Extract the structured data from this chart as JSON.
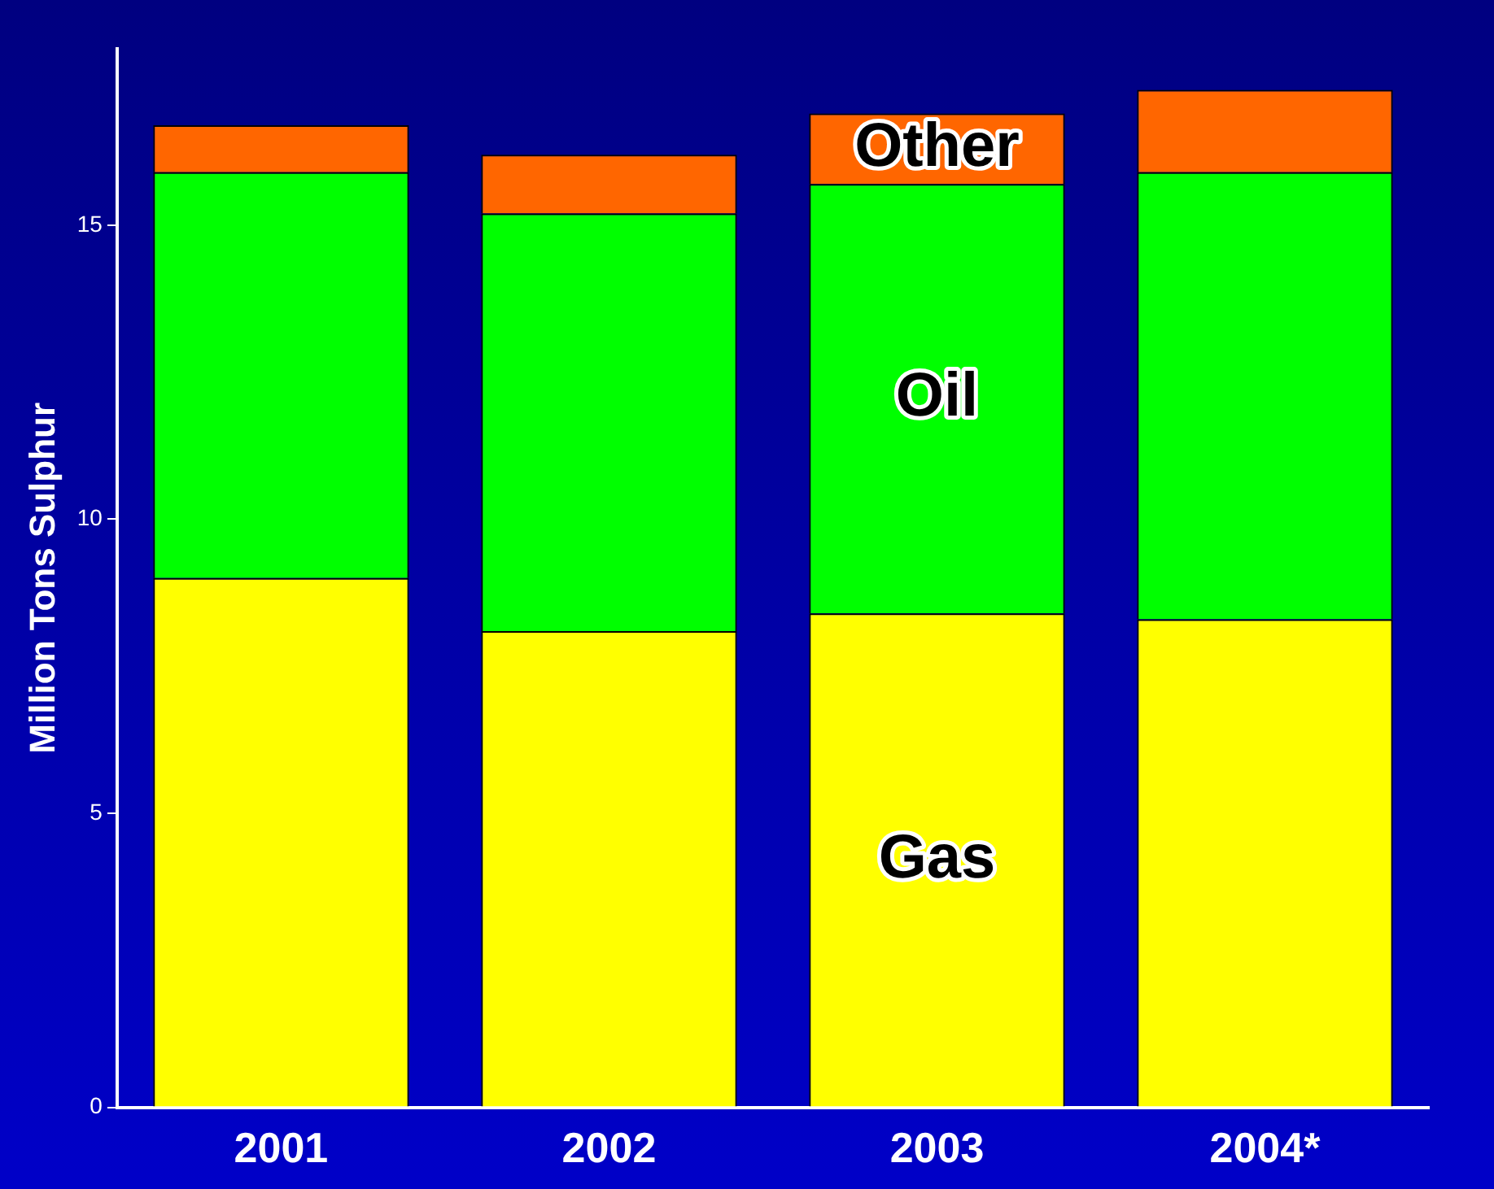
{
  "chart_data": {
    "type": "bar",
    "stacked": true,
    "ylabel": "Million Tons Sulphur",
    "categories": [
      "2001",
      "2002",
      "2003",
      "2004*"
    ],
    "series": [
      {
        "name": "Gas",
        "color": "#ffff00",
        "values": [
          9.0,
          8.1,
          8.4,
          8.3
        ]
      },
      {
        "name": "Oil",
        "color": "#00ff00",
        "values": [
          6.9,
          7.1,
          7.3,
          7.6
        ]
      },
      {
        "name": "Other",
        "color": "#ff6600",
        "values": [
          0.8,
          1.0,
          1.2,
          1.4
        ]
      }
    ],
    "ylim": [
      0,
      18
    ],
    "yticks": [
      0,
      5,
      10,
      15
    ],
    "grid": false,
    "legend": false
  }
}
